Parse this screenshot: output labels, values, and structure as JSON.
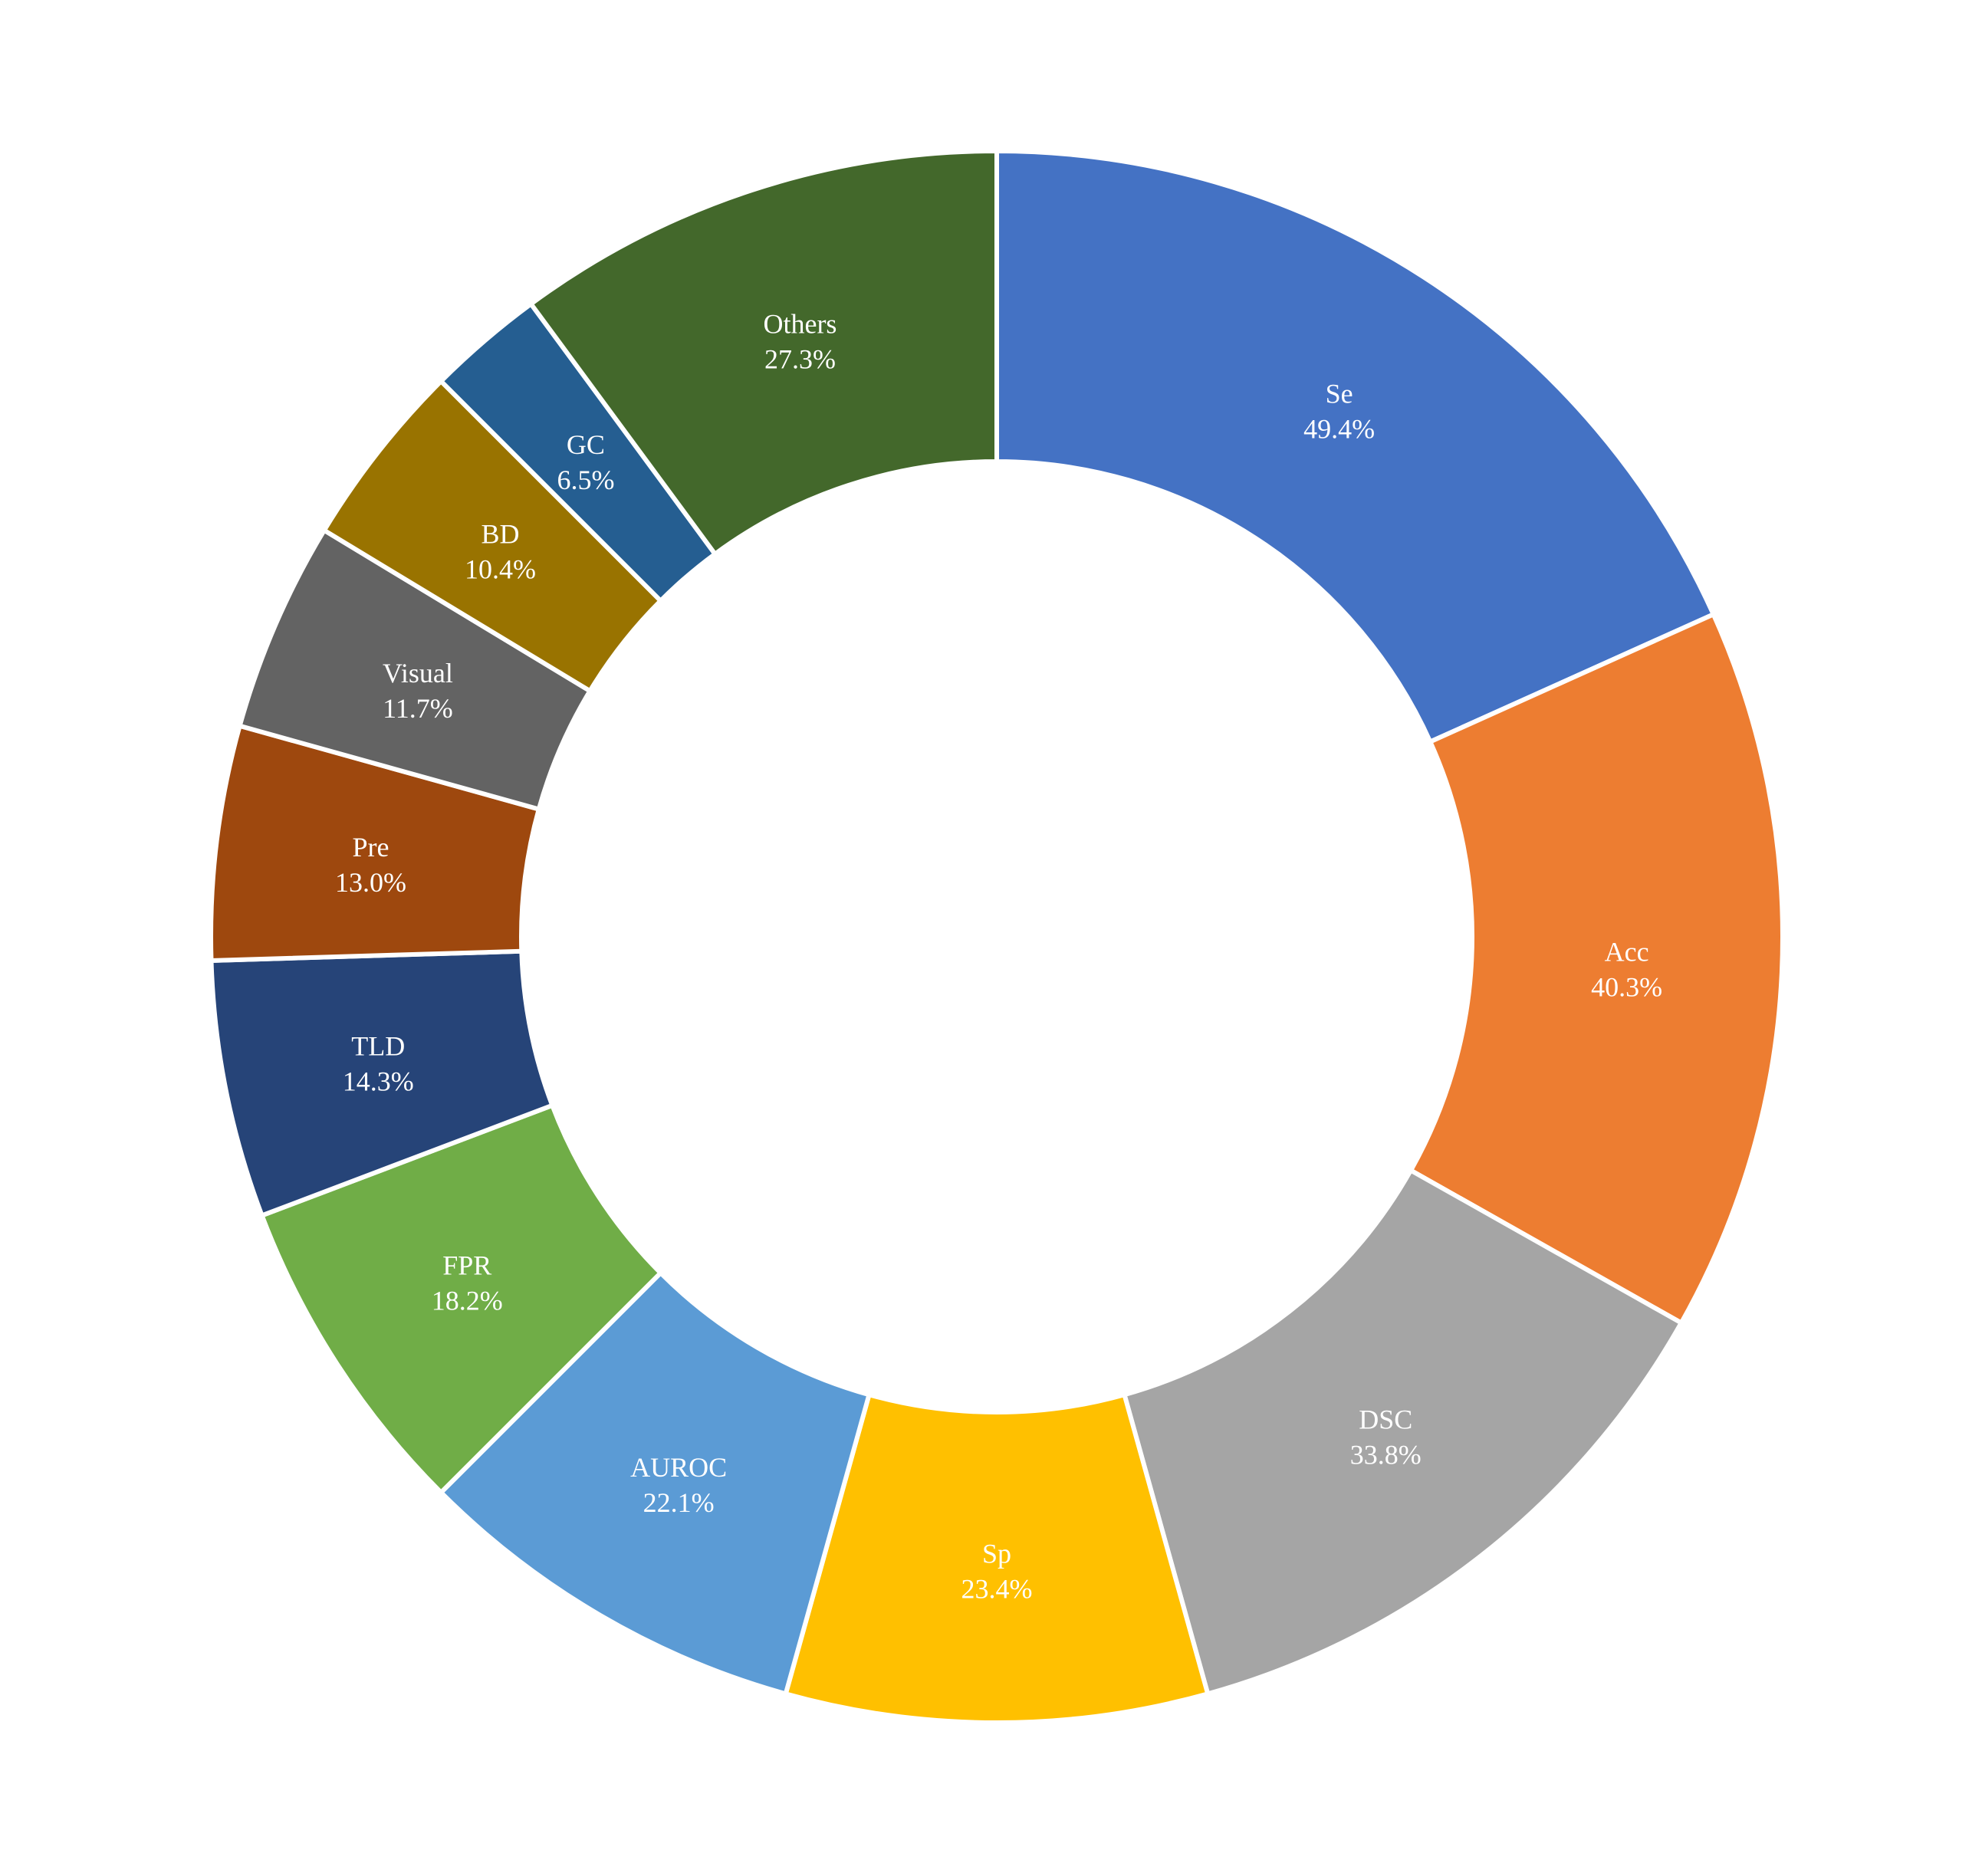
{
  "chart_data": {
    "type": "pie",
    "title": "",
    "donut": true,
    "start_angle": "12 o'clock",
    "direction": "clockwise",
    "slices": [
      {
        "label": "Se",
        "value": 49.4,
        "value_label": "49.4%",
        "color": "#4472C4"
      },
      {
        "label": "Acc",
        "value": 40.3,
        "value_label": "40.3%",
        "color": "#ED7D31"
      },
      {
        "label": "DSC",
        "value": 33.8,
        "value_label": "33.8%",
        "color": "#A5A5A5"
      },
      {
        "label": "Sp",
        "value": 23.4,
        "value_label": "23.4%",
        "color": "#FFC000"
      },
      {
        "label": "AUROC",
        "value": 22.1,
        "value_label": "22.1%",
        "color": "#5B9BD5"
      },
      {
        "label": "FPR",
        "value": 18.2,
        "value_label": "18.2%",
        "color": "#70AD47"
      },
      {
        "label": "TLD",
        "value": 14.3,
        "value_label": "14.3%",
        "color": "#264478"
      },
      {
        "label": "Pre",
        "value": 13.0,
        "value_label": "13.0%",
        "color": "#9E480E"
      },
      {
        "label": "Visual",
        "value": 11.7,
        "value_label": "11.7%",
        "color": "#636363"
      },
      {
        "label": "BD",
        "value": 10.4,
        "value_label": "10.4%",
        "color": "#997300"
      },
      {
        "label": "GC",
        "value": 6.5,
        "value_label": "6.5%",
        "color": "#255E91"
      },
      {
        "label": "Others",
        "value": 27.3,
        "value_label": "27.3%",
        "color": "#43682B"
      }
    ]
  }
}
